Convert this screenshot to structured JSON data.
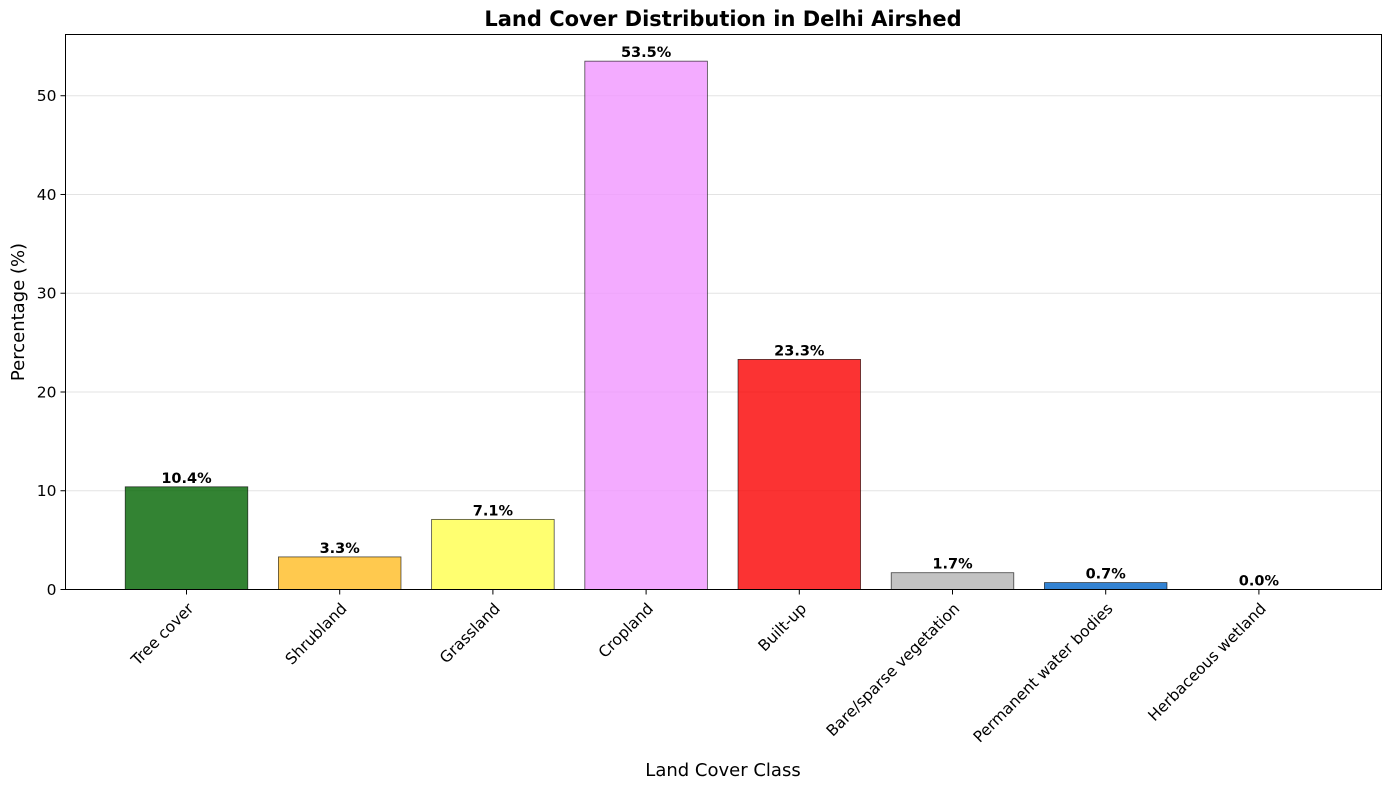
{
  "chart_data": {
    "type": "bar",
    "title": "Land Cover Distribution in Delhi Airshed",
    "xlabel": "Land Cover Class",
    "ylabel": "Percentage (%)",
    "categories": [
      "Tree cover",
      "Shrubland",
      "Grassland",
      "Cropland",
      "Built-up",
      "Bare/sparse vegetation",
      "Permanent water bodies",
      "Herbaceous wetland"
    ],
    "values": [
      10.4,
      3.3,
      7.1,
      53.5,
      23.3,
      1.7,
      0.7,
      0.0
    ],
    "value_labels": [
      "10.4%",
      "3.3%",
      "7.1%",
      "53.5%",
      "23.3%",
      "1.7%",
      "0.7%",
      "0.0%"
    ],
    "colors": [
      "#006400",
      "#ffbb22",
      "#ffff4c",
      "#f096ff",
      "#fa0000",
      "#b4b4b4",
      "#0064c8",
      "#0096a0"
    ],
    "yticks": [
      0,
      10,
      20,
      30,
      40,
      50
    ],
    "ylim": [
      0,
      56.2
    ],
    "grid": "horizontal"
  }
}
